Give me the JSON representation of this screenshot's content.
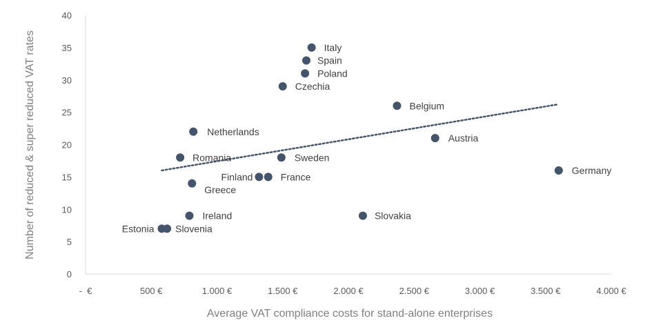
{
  "chart_data": {
    "type": "scatter",
    "xlabel": "Average VAT compliance costs for stand-alone enterprises",
    "ylabel": "Number of reduced & super reduced VAT rates",
    "xlim": [
      0,
      4000
    ],
    "ylim": [
      0,
      40
    ],
    "x_ticks": [
      0,
      500,
      1000,
      1500,
      2000,
      2500,
      3000,
      3500,
      4000
    ],
    "x_tick_labels": [
      "-  €",
      "500 €",
      "1.000 €",
      "1.500 €",
      "2.000 €",
      "2.500 €",
      "3.000 €",
      "3.500 €",
      "4.000 €"
    ],
    "y_ticks": [
      0,
      5,
      10,
      15,
      20,
      25,
      30,
      35,
      40
    ],
    "y_tick_labels": [
      "0",
      "5",
      "10",
      "15",
      "20",
      "25",
      "30",
      "35",
      "40"
    ],
    "grid": false,
    "marker_color": "#44546a",
    "trendline": {
      "style": "dotted",
      "color": "#44546a",
      "from": [
        580,
        16
      ],
      "to": [
        3590,
        26.2
      ]
    },
    "points": [
      {
        "label": "Italy",
        "x": 1720,
        "y": 35
      },
      {
        "label": "Spain",
        "x": 1680,
        "y": 33
      },
      {
        "label": "Poland",
        "x": 1670,
        "y": 31
      },
      {
        "label": "Czechia",
        "x": 1500,
        "y": 29
      },
      {
        "label": "Belgium",
        "x": 2370,
        "y": 26
      },
      {
        "label": "Netherlands",
        "x": 820,
        "y": 22
      },
      {
        "label": "Austria",
        "x": 2660,
        "y": 21
      },
      {
        "label": "Romania",
        "x": 720,
        "y": 18
      },
      {
        "label": "Sweden",
        "x": 1490,
        "y": 18
      },
      {
        "label": "Germany",
        "x": 3600,
        "y": 16
      },
      {
        "label": "Finland",
        "x": 1320,
        "y": 15
      },
      {
        "label": "France",
        "x": 1390,
        "y": 15
      },
      {
        "label": "Greece",
        "x": 810,
        "y": 14
      },
      {
        "label": "Ireland",
        "x": 790,
        "y": 9
      },
      {
        "label": "Slovakia",
        "x": 2110,
        "y": 9
      },
      {
        "label": "Estonia",
        "x": 580,
        "y": 7
      },
      {
        "label": "Slovenia",
        "x": 620,
        "y": 7
      }
    ]
  }
}
